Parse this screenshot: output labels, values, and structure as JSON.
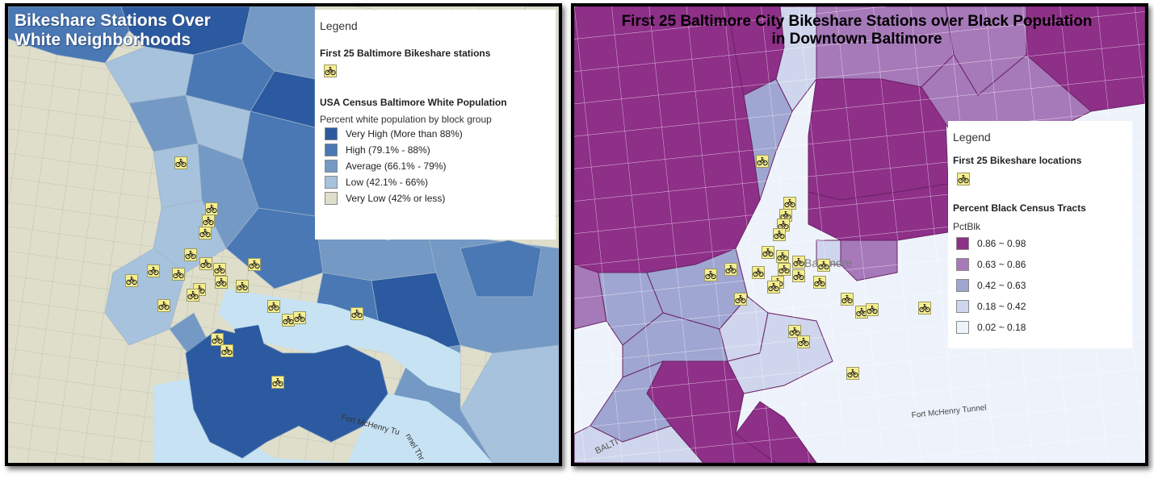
{
  "left_map": {
    "title": "Bikeshare Stations Over White Neighborhoods",
    "legend": {
      "heading": "Legend",
      "stations_layer": "First 25 Baltimore Bikeshare stations",
      "population_layer": "USA Census Baltimore White Population",
      "subtitle": "Percent white population by block group",
      "classes": [
        {
          "label": "Very High (More than 88%)",
          "color": "#2c5aa0"
        },
        {
          "label": "High (79.1% - 88%)",
          "color": "#4a78b4"
        },
        {
          "label": "Average (66.1% - 79%)",
          "color": "#7399c4"
        },
        {
          "label": "Low (42.1% - 66%)",
          "color": "#a6c2dc"
        },
        {
          "label": "Very Low (42% or less)",
          "color": "#dedecb"
        }
      ]
    },
    "water_color": "#c6e2f3",
    "bike_icon": "bicycle-icon",
    "road_labels": [
      "Fort McHenry Tu",
      "nnel Thr"
    ]
  },
  "right_map": {
    "title_line1": "First 25 Baltimore City Bikeshare Stations over Black Population",
    "title_line2": "in Downtown Baltimore",
    "legend": {
      "heading": "Legend",
      "stations_layer": "First 25 Bikeshare locations",
      "population_layer": "Percent Black Census Tracts",
      "field": "PctBlk",
      "classes": [
        {
          "label": "0.86 ~ 0.98",
          "color": "#8e2f88"
        },
        {
          "label": "0.63 ~ 0.86",
          "color": "#a679b9"
        },
        {
          "label": "0.42 ~ 0.63",
          "color": "#9fa6d1"
        },
        {
          "label": "0.18 ~ 0.42",
          "color": "#cfd5ec"
        },
        {
          "label": "0.02 ~ 0.18",
          "color": "#eef3fb"
        }
      ]
    },
    "bike_icon": "bicycle-icon",
    "place_labels": [
      "Baltimore",
      "Fort McHenry Tunnel",
      "BALTI"
    ]
  }
}
